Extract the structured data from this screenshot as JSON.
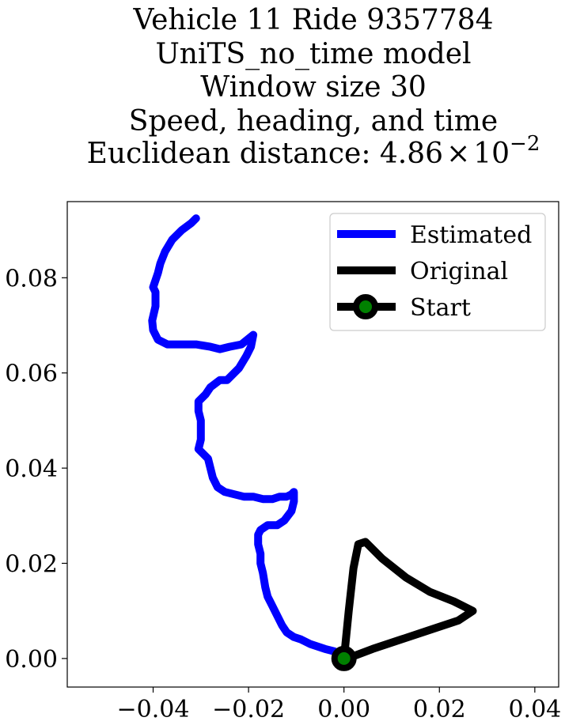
{
  "chart_data": {
    "type": "line",
    "title_lines": [
      "Vehicle 11 Ride 9357784",
      "UniTS_no_time model",
      "Window size 30",
      "Speed, heading, and time"
    ],
    "title_distance_prefix": "Euclidean distance: ",
    "title_distance_mantissa": "4.86",
    "title_distance_times": "×",
    "title_distance_base": "10",
    "title_distance_exponent": "−2",
    "xlim": [
      -0.058,
      0.045
    ],
    "ylim": [
      -0.006,
      0.096
    ],
    "xticks": [
      -0.04,
      -0.02,
      0.0,
      0.02,
      0.04
    ],
    "xtick_labels": [
      "−0.04",
      "−0.02",
      "0.00",
      "0.02",
      "0.04"
    ],
    "yticks": [
      0.0,
      0.02,
      0.04,
      0.06,
      0.08
    ],
    "ytick_labels": [
      "0.00",
      "0.02",
      "0.04",
      "0.06",
      "0.08"
    ],
    "legend_position": "top-right",
    "series": [
      {
        "name": "Estimated",
        "color": "#0000ff",
        "points": [
          [
            0.0,
            0.0
          ],
          [
            -0.002,
            0.0015
          ],
          [
            -0.004,
            0.002
          ],
          [
            -0.007,
            0.003
          ],
          [
            -0.009,
            0.004
          ],
          [
            -0.0105,
            0.0045
          ],
          [
            -0.012,
            0.0055
          ],
          [
            -0.013,
            0.007
          ],
          [
            -0.014,
            0.009
          ],
          [
            -0.015,
            0.011
          ],
          [
            -0.016,
            0.013
          ],
          [
            -0.0165,
            0.015
          ],
          [
            -0.017,
            0.018
          ],
          [
            -0.0175,
            0.02
          ],
          [
            -0.0175,
            0.022
          ],
          [
            -0.018,
            0.024
          ],
          [
            -0.018,
            0.026
          ],
          [
            -0.0175,
            0.027
          ],
          [
            -0.016,
            0.028
          ],
          [
            -0.014,
            0.028
          ],
          [
            -0.0125,
            0.029
          ],
          [
            -0.011,
            0.031
          ],
          [
            -0.0105,
            0.033
          ],
          [
            -0.0105,
            0.035
          ],
          [
            -0.011,
            0.0345
          ],
          [
            -0.012,
            0.034
          ],
          [
            -0.0135,
            0.034
          ],
          [
            -0.015,
            0.0335
          ],
          [
            -0.017,
            0.0335
          ],
          [
            -0.019,
            0.034
          ],
          [
            -0.021,
            0.034
          ],
          [
            -0.023,
            0.0345
          ],
          [
            -0.025,
            0.035
          ],
          [
            -0.0265,
            0.036
          ],
          [
            -0.0275,
            0.038
          ],
          [
            -0.028,
            0.04
          ],
          [
            -0.0285,
            0.042
          ],
          [
            -0.0305,
            0.044
          ],
          [
            -0.03,
            0.046
          ],
          [
            -0.03,
            0.048
          ],
          [
            -0.03,
            0.05
          ],
          [
            -0.0305,
            0.052
          ],
          [
            -0.0305,
            0.054
          ],
          [
            -0.029,
            0.0555
          ],
          [
            -0.028,
            0.057
          ],
          [
            -0.026,
            0.0585
          ],
          [
            -0.0245,
            0.0585
          ],
          [
            -0.0235,
            0.0595
          ],
          [
            -0.022,
            0.061
          ],
          [
            -0.0205,
            0.0635
          ],
          [
            -0.0195,
            0.0655
          ],
          [
            -0.019,
            0.068
          ],
          [
            -0.0215,
            0.066
          ],
          [
            -0.024,
            0.0655
          ],
          [
            -0.026,
            0.065
          ],
          [
            -0.028,
            0.0655
          ],
          [
            -0.031,
            0.066
          ],
          [
            -0.034,
            0.066
          ],
          [
            -0.037,
            0.066
          ],
          [
            -0.039,
            0.067
          ],
          [
            -0.04,
            0.069
          ],
          [
            -0.0402,
            0.071
          ],
          [
            -0.0395,
            0.074
          ],
          [
            -0.0395,
            0.077
          ],
          [
            -0.04,
            0.078
          ],
          [
            -0.039,
            0.081
          ],
          [
            -0.0385,
            0.083
          ],
          [
            -0.0375,
            0.0855
          ],
          [
            -0.036,
            0.088
          ],
          [
            -0.034,
            0.09
          ],
          [
            -0.032,
            0.0915
          ],
          [
            -0.031,
            0.0925
          ]
        ]
      },
      {
        "name": "Original",
        "color": "#000000",
        "points": [
          [
            0.0,
            0.0
          ],
          [
            0.001,
            0.01
          ],
          [
            0.002,
            0.019
          ],
          [
            0.003,
            0.024
          ],
          [
            0.0045,
            0.0245
          ],
          [
            0.008,
            0.021
          ],
          [
            0.013,
            0.017
          ],
          [
            0.018,
            0.014
          ],
          [
            0.023,
            0.012
          ],
          [
            0.027,
            0.01
          ],
          [
            0.024,
            0.008
          ],
          [
            0.018,
            0.006
          ],
          [
            0.012,
            0.004
          ],
          [
            0.006,
            0.002
          ],
          [
            0.002,
            0.0005
          ],
          [
            0.0,
            0.0
          ]
        ]
      },
      {
        "name": "Start",
        "color": "#000000",
        "marker_color": "#008000",
        "points": [
          [
            0.0,
            0.0
          ]
        ]
      }
    ]
  }
}
